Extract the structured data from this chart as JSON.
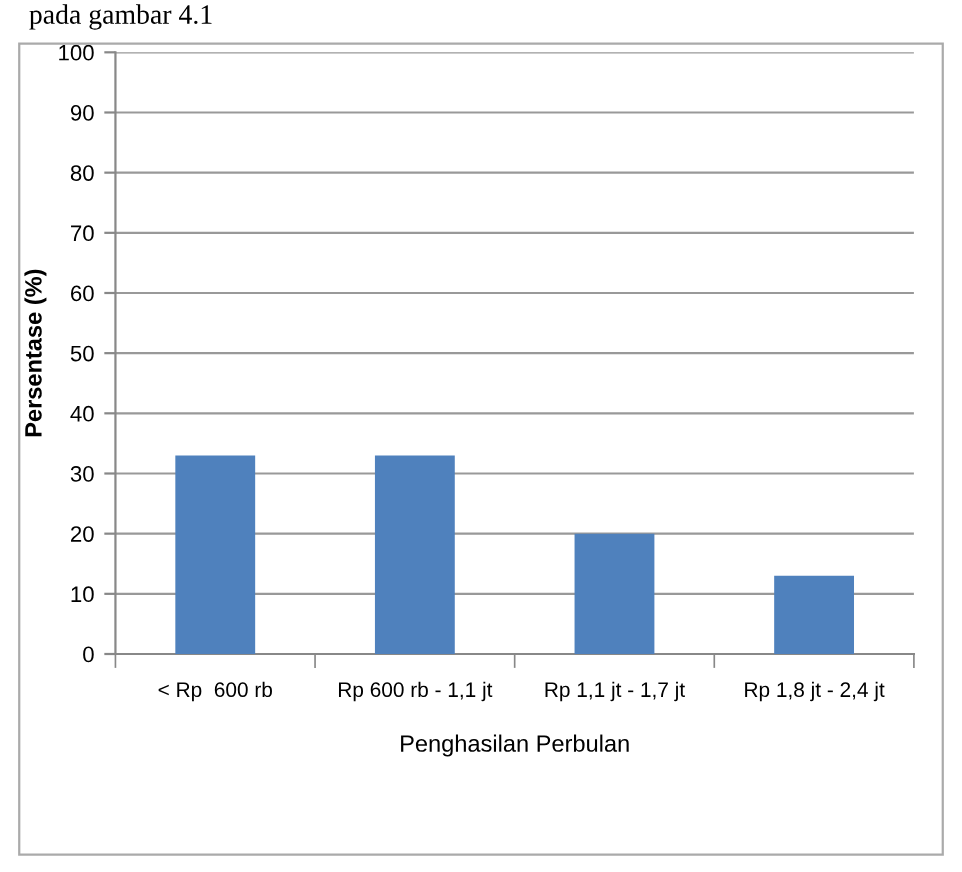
{
  "chart_data": {
    "type": "bar",
    "xlabel": "Penghasilan Perbulan",
    "ylabel": "Persentase (%)",
    "categories": [
      "< Rp  600 rb",
      "Rp 600 rb - 1,1 jt",
      "Rp 1,1 jt - 1,7 jt",
      "Rp 1,8 jt - 2,4 jt"
    ],
    "values": [
      33,
      33,
      20,
      13
    ],
    "color": "#4f81bd",
    "ylim": [
      0,
      100
    ],
    "yticks": [
      0,
      10,
      20,
      30,
      40,
      50,
      60,
      70,
      80,
      90,
      100
    ],
    "grid": "y",
    "annotations": [
      "pada gambar 4.1"
    ]
  }
}
